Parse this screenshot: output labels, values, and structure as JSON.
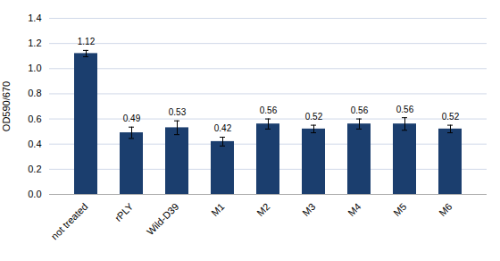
{
  "chart_data": {
    "type": "bar",
    "categories": [
      "not treated",
      "rPLY",
      "Wild-D39",
      "M1",
      "M2",
      "M3",
      "M4",
      "M5",
      "M6"
    ],
    "values": [
      1.12,
      0.49,
      0.53,
      0.42,
      0.56,
      0.52,
      0.56,
      0.56,
      0.52
    ],
    "errors": [
      0.025,
      0.045,
      0.055,
      0.035,
      0.04,
      0.03,
      0.04,
      0.05,
      0.03
    ],
    "color": "#1b3e6e",
    "ylabel": "OD590/670",
    "ylim": [
      0,
      1.4
    ],
    "yticks": [
      {
        "value": 0,
        "label": "0.0"
      },
      0.2,
      0.4,
      0.6,
      0.8,
      {
        "value": 1.0,
        "label": "1.0"
      },
      1.2,
      1.4
    ],
    "grid": true,
    "data_labels": true
  }
}
